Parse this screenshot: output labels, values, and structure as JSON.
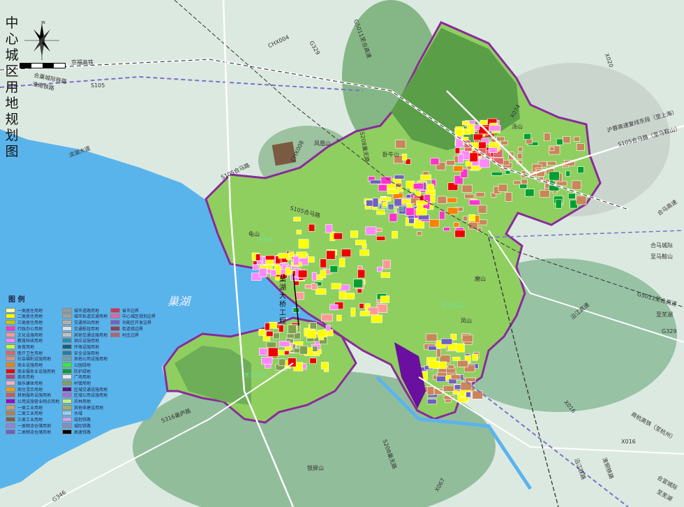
{
  "title": "中心城区用地规划图",
  "compass": {
    "north_label": "N"
  },
  "lake": {
    "name": "巢湖",
    "color": "#5ab4ec"
  },
  "colors": {
    "land": "#dce9e1",
    "boundary": "#8a2a9a",
    "mountain": "#6aa86a",
    "urban_green": "#8fcf60"
  },
  "legend": {
    "title": "图 例",
    "columns": [
      [
        {
          "label": "一类居住用地",
          "color": "#ffff99"
        },
        {
          "label": "二类居住用地",
          "color": "#ffff00"
        },
        {
          "label": "三类居住用地",
          "color": "#c8c800"
        },
        {
          "label": "行政办公用地",
          "color": "#ff33cc"
        },
        {
          "label": "文化设施用地",
          "color": "#ff9999"
        },
        {
          "label": "教育科研用地",
          "color": "#ff88ff"
        },
        {
          "label": "体育用地",
          "color": "#ccff33"
        },
        {
          "label": "医疗卫生用地",
          "color": "#e06666"
        },
        {
          "label": "社会福利设施用地",
          "color": "#e09080"
        },
        {
          "label": "商业设施用地",
          "color": "#ff8000"
        },
        {
          "label": "商业服务业设施用地",
          "color": "#ee0000"
        },
        {
          "label": "商务用地",
          "color": "#b04080"
        },
        {
          "label": "娱乐康体用地",
          "color": "#ffb0c0"
        },
        {
          "label": "商住混合用地",
          "color": "#ff9900"
        },
        {
          "label": "其他服务设施用地",
          "color": "#c06060"
        },
        {
          "label": "公用设施营业网点用地",
          "color": "#9900cc"
        },
        {
          "label": "一类工业用地",
          "color": "#c8a070"
        },
        {
          "label": "二类工业用地",
          "color": "#b08050"
        },
        {
          "label": "三类工业用地",
          "color": "#806040"
        },
        {
          "label": "一类物流仓储用地",
          "color": "#9080e0"
        },
        {
          "label": "二类物流仓储用地",
          "color": "#7060c0"
        }
      ],
      [
        {
          "label": "城市道路用地",
          "color": "#999999"
        },
        {
          "label": "城市轨道交通用地",
          "color": "#a0a0a0"
        },
        {
          "label": "交通场站用地",
          "color": "#b0b0b0"
        },
        {
          "label": "交通枢纽用地",
          "color": "#e0e0e0"
        },
        {
          "label": "其他交通设施用地",
          "color": "#c0c0c0"
        },
        {
          "label": "供应设施用地",
          "color": "#2090b0"
        },
        {
          "label": "环境设施用地",
          "color": "#106080"
        },
        {
          "label": "安全设施用地",
          "color": "#2080a0"
        },
        {
          "label": "其他公用设施用地",
          "color": "#70a0b0"
        },
        {
          "label": "公园绿地",
          "color": "#33ee33"
        },
        {
          "label": "防护绿地",
          "color": "#00a030"
        },
        {
          "label": "广场用地",
          "color": "#e8e8e8"
        },
        {
          "label": "村镇用地",
          "color": "#80a050"
        },
        {
          "label": "区域交通设施用地",
          "color": "#5a1090"
        },
        {
          "label": "区域公用设施用地",
          "color": "#a070e0"
        },
        {
          "label": "农林用地",
          "color": "#c0f080"
        },
        {
          "label": "其他非建设用地",
          "color": "#a0b060"
        },
        {
          "label": "水域",
          "color": "#90d0ff"
        },
        {
          "label": "规划铁路",
          "color": "#d0a0f0"
        },
        {
          "label": "城际铁路",
          "color": "#8090c0"
        },
        {
          "label": "高速铁路",
          "color": "#000000"
        }
      ],
      [
        {
          "label": "省市边界",
          "color": "#cc3366"
        },
        {
          "label": "中心城区规划边界",
          "color": "#dd66aa"
        },
        {
          "label": "功能区开发边界",
          "color": "#6666cc"
        },
        {
          "label": "街道镇边界",
          "color": "#884466"
        },
        {
          "label": "村庄边界",
          "color": "#aa6677"
        }
      ]
    ]
  },
  "labels": {
    "rail_jingfu": "京福高铁",
    "rail_hechao": "合巢城际铁路",
    "rail_huainan": "淮南铁路",
    "s105": "S105",
    "binhu": "滨湖大道",
    "s105_hema": "S105合马路",
    "s105_hema_2": "S105合马路",
    "chx004": "CHX004",
    "chx008": "CHX008",
    "g329_n": "G329",
    "g5011_n": "G5011芜合高速",
    "s208_n": "S208巢无路",
    "x020": "X020",
    "x074": "X074",
    "hurong": "沪蓉高速复线东段（至上海）",
    "s105_east": "S105合马路（至马鞍山）",
    "hema_gaosu": "合马高速",
    "hema_chengji": "合马城际",
    "to_maanshan": "至马鞍山",
    "g5011_e": "G5011芜合高速",
    "to_wuhu": "至芜湖",
    "g329_e": "G329",
    "yanjiang": "沿江高速",
    "x016_a": "X016",
    "x016_b": "X016",
    "shanghang": "商杭高铁（至杭州）",
    "hexuan": "合宣城际",
    "to_wuhu_2": "至芜湖",
    "huaitong": "淮铜铁路",
    "yanjiang_rail": "沿江铁路",
    "s208_s": "S208巢无路",
    "x067": "X067",
    "s316": "S316巢庐路",
    "g346": "G346",
    "fenghuangshan": "凤凰山",
    "woniushan": "卧牛山",
    "guishan": "龟山",
    "tangshan": "汤山",
    "mashan": "磨山",
    "fushan": "凤山",
    "yinpingshan": "银屏山",
    "bridge": "巢湖大桥工程",
    "tianhe": "天河街道",
    "yafu": "亚父街道",
    "wannian": "万年台",
    "fenghuangshan_jd": "凤凰山街道"
  }
}
